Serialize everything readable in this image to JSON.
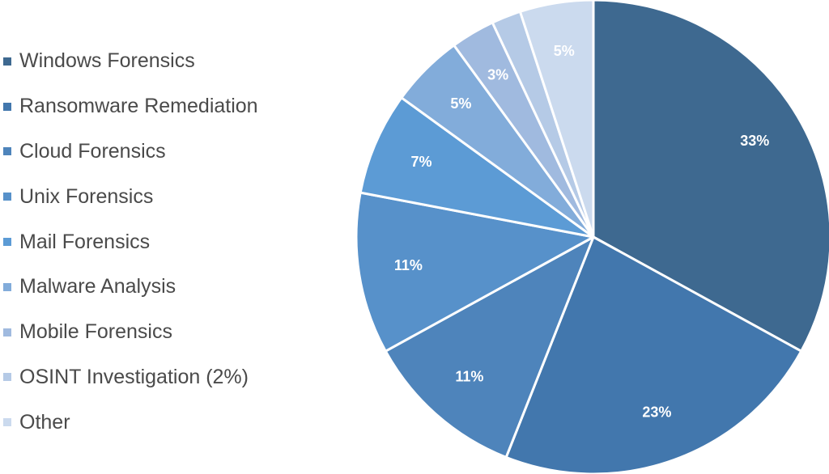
{
  "chart_data": {
    "type": "pie",
    "title": "",
    "legend_position": "left",
    "categories": [
      "Windows Forensics",
      "Ransomware Remediation",
      "Cloud Forensics",
      "Unix Forensics",
      "Mail Forensics",
      "Malware Analysis",
      "Mobile Forensics",
      "OSINT Investigation (2%)",
      "Other"
    ],
    "values": [
      33,
      23,
      11,
      11,
      7,
      5,
      3,
      2,
      5
    ],
    "data_labels": [
      "33%",
      "23%",
      "11%",
      "11%",
      "7%",
      "5%",
      "3%",
      "",
      "5%"
    ],
    "colors": [
      "#3E6990",
      "#4277AD",
      "#4E84BB",
      "#5791CA",
      "#5C9BD5",
      "#82ACDA",
      "#A0BADF",
      "#B5CAE6",
      "#CBDAEE"
    ]
  }
}
